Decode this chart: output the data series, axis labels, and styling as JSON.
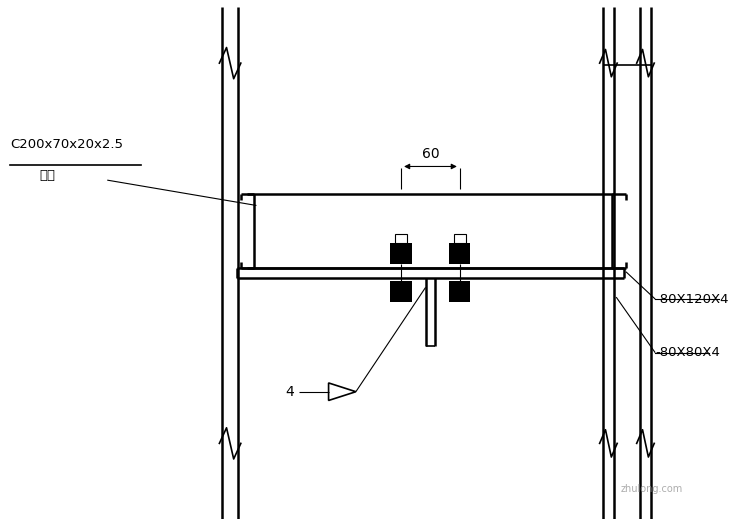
{
  "bg_color": "#ffffff",
  "line_color": "#000000",
  "fig_width": 7.41,
  "fig_height": 5.26,
  "dpi": 100,
  "label_c_section_line1": "C200x70x20x2.5",
  "label_c_section_line2": "墙梁",
  "label_80x120": "-80X120X4",
  "label_80x80": "-80X80X4",
  "label_60": "60",
  "label_4": "4",
  "watermark_text": "zhulong.com"
}
